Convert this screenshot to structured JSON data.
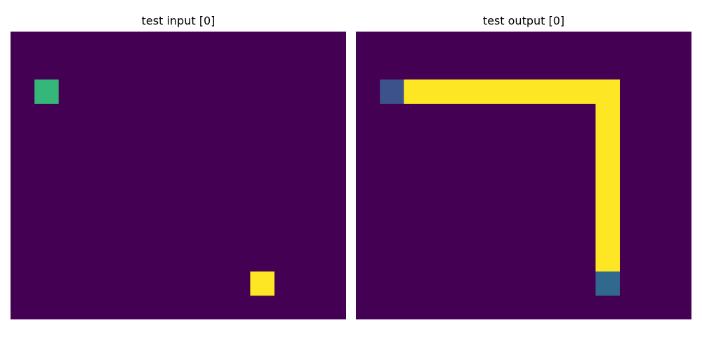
{
  "panels": [
    {
      "title": "test input [0]",
      "rows": 12,
      "cols": 14,
      "background": "#440154",
      "cells": [
        {
          "row": 2,
          "col": 1,
          "color": "#35b779"
        },
        {
          "row": 10,
          "col": 10,
          "color": "#fde725"
        }
      ]
    },
    {
      "title": "test output [0]",
      "rows": 12,
      "cols": 14,
      "background": "#440154",
      "cells": [
        {
          "row": 2,
          "col": 1,
          "color": "#3b528b"
        },
        {
          "row": 2,
          "col": 2,
          "color": "#fde725"
        },
        {
          "row": 2,
          "col": 3,
          "color": "#fde725"
        },
        {
          "row": 2,
          "col": 4,
          "color": "#fde725"
        },
        {
          "row": 2,
          "col": 5,
          "color": "#fde725"
        },
        {
          "row": 2,
          "col": 6,
          "color": "#fde725"
        },
        {
          "row": 2,
          "col": 7,
          "color": "#fde725"
        },
        {
          "row": 2,
          "col": 8,
          "color": "#fde725"
        },
        {
          "row": 2,
          "col": 9,
          "color": "#fde725"
        },
        {
          "row": 2,
          "col": 10,
          "color": "#fde725"
        },
        {
          "row": 3,
          "col": 10,
          "color": "#fde725"
        },
        {
          "row": 4,
          "col": 10,
          "color": "#fde725"
        },
        {
          "row": 5,
          "col": 10,
          "color": "#fde725"
        },
        {
          "row": 6,
          "col": 10,
          "color": "#fde725"
        },
        {
          "row": 7,
          "col": 10,
          "color": "#fde725"
        },
        {
          "row": 8,
          "col": 10,
          "color": "#fde725"
        },
        {
          "row": 9,
          "col": 10,
          "color": "#fde725"
        },
        {
          "row": 10,
          "col": 10,
          "color": "#31688e"
        }
      ]
    }
  ]
}
